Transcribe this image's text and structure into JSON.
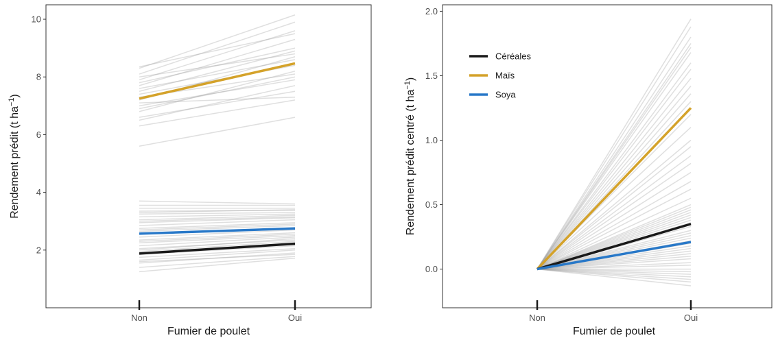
{
  "colors": {
    "cereales": "#1a1a1a",
    "mais": "#d4a22a",
    "soya": "#2878c8",
    "background_lines": "#9a9a9a"
  },
  "chart_data": [
    {
      "type": "line",
      "xlabel": "Fumier de poulet",
      "ylabel_main": "Rendement prédit (t ha",
      "ylabel_sup": "−1",
      "ylabel_end": ")",
      "categories": [
        "Non",
        "Oui"
      ],
      "ylim": [
        0,
        10.5
      ],
      "yticks": [
        2,
        4,
        6,
        8,
        10
      ],
      "ytick_labels": [
        "2",
        "4",
        "6",
        "8",
        "10"
      ],
      "grid": false,
      "series": [
        {
          "key": "mais",
          "values": [
            7.25,
            8.47
          ]
        },
        {
          "key": "soya",
          "values": [
            2.57,
            2.75
          ]
        },
        {
          "key": "cereales",
          "values": [
            1.88,
            2.22
          ]
        }
      ],
      "background_lines": [
        [
          5.6,
          6.6
        ],
        [
          6.3,
          7.2
        ],
        [
          6.6,
          7.5
        ],
        [
          6.8,
          8.2
        ],
        [
          7.0,
          7.9
        ],
        [
          7.2,
          8.7
        ],
        [
          7.4,
          8.4
        ],
        [
          7.5,
          8.9
        ],
        [
          7.6,
          8.6
        ],
        [
          7.7,
          9.3
        ],
        [
          7.8,
          9.0
        ],
        [
          7.9,
          9.6
        ],
        [
          8.0,
          8.8
        ],
        [
          8.1,
          9.9
        ],
        [
          8.3,
          10.15
        ],
        [
          8.35,
          9.5
        ],
        [
          7.1,
          7.3
        ],
        [
          6.5,
          7.7
        ],
        [
          7.3,
          8.1
        ],
        [
          6.9,
          8.0
        ],
        [
          1.25,
          1.72
        ],
        [
          1.4,
          1.78
        ],
        [
          1.55,
          1.9
        ],
        [
          1.65,
          2.0
        ],
        [
          1.75,
          2.05
        ],
        [
          1.85,
          2.15
        ],
        [
          1.95,
          2.3
        ],
        [
          2.05,
          2.35
        ],
        [
          2.15,
          2.45
        ],
        [
          2.25,
          2.5
        ],
        [
          2.35,
          2.6
        ],
        [
          2.45,
          2.7
        ],
        [
          2.55,
          2.78
        ],
        [
          2.65,
          2.85
        ],
        [
          2.75,
          2.95
        ],
        [
          2.85,
          3.05
        ],
        [
          2.95,
          3.12
        ],
        [
          3.05,
          3.2
        ],
        [
          3.15,
          3.25
        ],
        [
          3.25,
          3.3
        ],
        [
          3.35,
          3.38
        ],
        [
          3.45,
          3.45
        ],
        [
          3.55,
          3.55
        ],
        [
          3.7,
          3.6
        ],
        [
          1.6,
          1.85
        ],
        [
          2.0,
          2.4
        ],
        [
          2.3,
          2.55
        ],
        [
          2.7,
          2.9
        ],
        [
          3.0,
          3.15
        ],
        [
          3.3,
          3.4
        ]
      ]
    },
    {
      "type": "line",
      "xlabel": "Fumier de poulet",
      "ylabel_main": "Rendement prédit centré (t ha",
      "ylabel_sup": "−1",
      "ylabel_end": ")",
      "categories": [
        "Non",
        "Oui"
      ],
      "ylim": [
        -0.3,
        2.05
      ],
      "yticks": [
        0.0,
        0.5,
        1.0,
        1.5,
        2.0
      ],
      "ytick_labels": [
        "0.0",
        "0.5",
        "1.0",
        "1.5",
        "2.0"
      ],
      "grid": false,
      "legend_position": "top-left",
      "legend": [
        {
          "key": "cereales",
          "label": "Céréales"
        },
        {
          "key": "mais",
          "label": "Maïs"
        },
        {
          "key": "soya",
          "label": "Soya"
        }
      ],
      "series": [
        {
          "key": "mais",
          "values": [
            0.0,
            1.25
          ]
        },
        {
          "key": "cereales",
          "values": [
            0.0,
            0.35
          ]
        },
        {
          "key": "soya",
          "values": [
            0.0,
            0.21
          ]
        }
      ],
      "background_lines": [
        [
          0,
          1.94
        ],
        [
          0,
          1.88
        ],
        [
          0,
          1.8
        ],
        [
          0,
          1.75
        ],
        [
          0,
          1.72
        ],
        [
          0,
          1.68
        ],
        [
          0,
          1.6
        ],
        [
          0,
          1.55
        ],
        [
          0,
          1.48
        ],
        [
          0,
          1.42
        ],
        [
          0,
          1.36
        ],
        [
          0,
          1.3
        ],
        [
          0,
          1.2
        ],
        [
          0,
          1.1
        ],
        [
          0,
          1.0
        ],
        [
          0,
          0.95
        ],
        [
          0,
          0.88
        ],
        [
          0,
          0.82
        ],
        [
          0,
          0.75
        ],
        [
          0,
          0.68
        ],
        [
          0,
          0.62
        ],
        [
          0,
          0.55
        ],
        [
          0,
          0.5
        ],
        [
          0,
          0.48
        ],
        [
          0,
          0.46
        ],
        [
          0,
          0.44
        ],
        [
          0,
          0.42
        ],
        [
          0,
          0.4
        ],
        [
          0,
          0.38
        ],
        [
          0,
          0.36
        ],
        [
          0,
          0.33
        ],
        [
          0,
          0.3
        ],
        [
          0,
          0.28
        ],
        [
          0,
          0.26
        ],
        [
          0,
          0.24
        ],
        [
          0,
          0.22
        ],
        [
          0,
          0.2
        ],
        [
          0,
          0.18
        ],
        [
          0,
          0.16
        ],
        [
          0,
          0.14
        ],
        [
          0,
          0.12
        ],
        [
          0,
          0.1
        ],
        [
          0,
          0.08
        ],
        [
          0,
          0.05
        ],
        [
          0,
          0.03
        ],
        [
          0,
          0.0
        ],
        [
          0,
          -0.02
        ],
        [
          0,
          -0.04
        ],
        [
          0,
          -0.06
        ],
        [
          0,
          -0.08
        ],
        [
          0,
          -0.1
        ],
        [
          0,
          -0.13
        ]
      ]
    }
  ]
}
